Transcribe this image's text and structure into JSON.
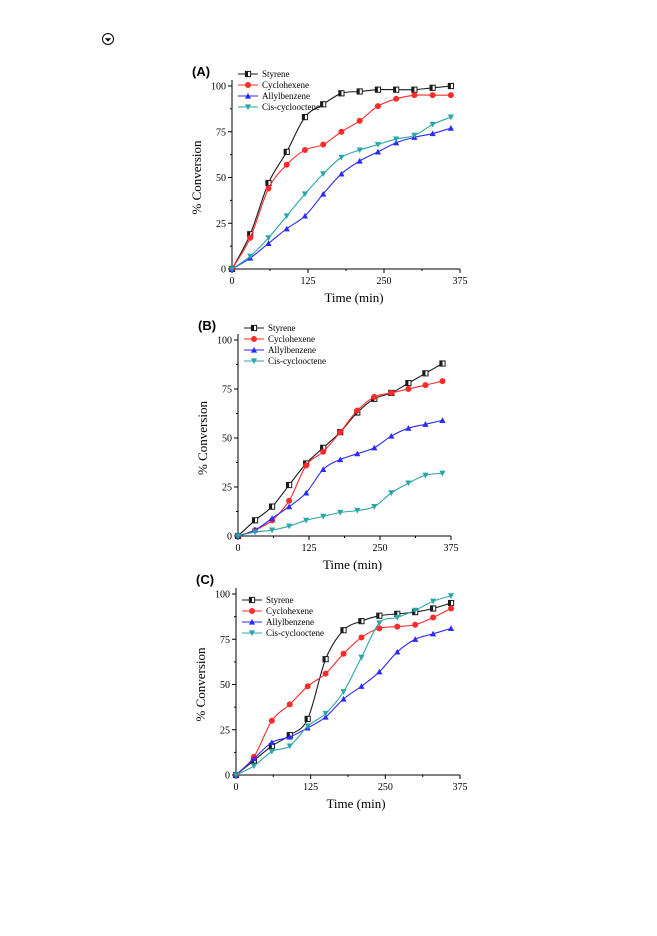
{
  "colors": {
    "styrene": "#1a1a1a",
    "cyclohexene": "#ff2a2a",
    "allylbenzene": "#2b2bff",
    "cis_cyclooctene": "#2aa6a8"
  },
  "page_icon": "circled-dot-icon",
  "chart_data": [
    {
      "type": "line",
      "panel_label": "(A)",
      "xlabel": "Time (min)",
      "ylabel": "% Conversion",
      "xlim": [
        0,
        375
      ],
      "ylim": [
        0,
        100
      ],
      "xticks": [
        "0",
        "125",
        "250",
        "375"
      ],
      "yticks": [
        "0",
        "25",
        "50",
        "75",
        "100"
      ],
      "legend_position": "top-left",
      "series": [
        {
          "name": "Styrene",
          "x": [
            0,
            30,
            60,
            90,
            120,
            150,
            180,
            210,
            240,
            270,
            300,
            330,
            360
          ],
          "y": [
            0,
            19,
            47,
            64,
            83,
            90,
            96,
            97,
            98,
            98,
            98,
            99,
            100
          ]
        },
        {
          "name": "Cyclohexene",
          "x": [
            0,
            30,
            60,
            90,
            120,
            150,
            180,
            210,
            240,
            270,
            300,
            330,
            360
          ],
          "y": [
            0,
            17,
            44,
            57,
            65,
            68,
            75,
            81,
            89,
            93,
            95,
            95,
            95
          ]
        },
        {
          "name": "Allylbenzene",
          "x": [
            0,
            30,
            60,
            90,
            120,
            150,
            180,
            210,
            240,
            270,
            300,
            330,
            360
          ],
          "y": [
            0,
            6,
            14,
            22,
            29,
            41,
            52,
            59,
            64,
            69,
            72,
            74,
            77
          ]
        },
        {
          "name": "Cis-cyclooctene",
          "x": [
            0,
            30,
            60,
            90,
            120,
            150,
            180,
            210,
            240,
            270,
            300,
            330,
            360
          ],
          "y": [
            0,
            7,
            17,
            29,
            41,
            52,
            61,
            65,
            68,
            71,
            73,
            79,
            83
          ]
        }
      ]
    },
    {
      "type": "line",
      "panel_label": "(B)",
      "xlabel": "Time (min)",
      "ylabel": "% Conversion",
      "xlim": [
        0,
        375
      ],
      "ylim": [
        0,
        100
      ],
      "xticks": [
        "0",
        "125",
        "250",
        "375"
      ],
      "yticks": [
        "0",
        "25",
        "50",
        "75",
        "100"
      ],
      "legend_position": "top-left",
      "series": [
        {
          "name": "Styrene",
          "x": [
            0,
            30,
            60,
            90,
            120,
            150,
            180,
            210,
            240,
            270,
            300,
            330,
            360
          ],
          "y": [
            0,
            8,
            15,
            26,
            37,
            45,
            53,
            63,
            70,
            73,
            78,
            83,
            88
          ]
        },
        {
          "name": "Cyclohexene",
          "x": [
            0,
            30,
            60,
            90,
            120,
            150,
            180,
            210,
            240,
            270,
            300,
            330,
            360
          ],
          "y": [
            0,
            3,
            8,
            18,
            36,
            43,
            53,
            64,
            71,
            73,
            75,
            77,
            79
          ]
        },
        {
          "name": "Allylbenzene",
          "x": [
            0,
            30,
            60,
            90,
            120,
            150,
            180,
            210,
            240,
            270,
            300,
            330,
            360
          ],
          "y": [
            0,
            3,
            9,
            15,
            22,
            34,
            39,
            42,
            45,
            51,
            55,
            57,
            59
          ]
        },
        {
          "name": "Cis-cyclooctene",
          "x": [
            0,
            30,
            60,
            90,
            120,
            150,
            180,
            210,
            240,
            270,
            300,
            330,
            360
          ],
          "y": [
            0,
            2,
            3,
            5,
            8,
            10,
            12,
            13,
            15,
            22,
            27,
            31,
            32
          ]
        }
      ]
    },
    {
      "type": "line",
      "panel_label": "(C)",
      "xlabel": "Time (min)",
      "ylabel": "% Conversion",
      "xlim": [
        0,
        375
      ],
      "ylim": [
        0,
        100
      ],
      "xticks": [
        "0",
        "125",
        "250",
        "375"
      ],
      "yticks": [
        "0",
        "25",
        "50",
        "75",
        "100"
      ],
      "legend_position": "top-left",
      "series": [
        {
          "name": "Styrene",
          "x": [
            0,
            30,
            60,
            90,
            120,
            150,
            180,
            210,
            240,
            270,
            300,
            330,
            360
          ],
          "y": [
            0,
            8,
            16,
            22,
            31,
            64,
            80,
            85,
            88,
            89,
            90,
            92,
            95
          ]
        },
        {
          "name": "Cyclohexene",
          "x": [
            0,
            30,
            60,
            90,
            120,
            150,
            180,
            210,
            240,
            270,
            300,
            330,
            360
          ],
          "y": [
            0,
            10,
            30,
            39,
            49,
            56,
            67,
            76,
            81,
            82,
            83,
            87,
            92
          ]
        },
        {
          "name": "Allylbenzene",
          "x": [
            0,
            30,
            60,
            90,
            120,
            150,
            180,
            210,
            240,
            270,
            300,
            330,
            360
          ],
          "y": [
            0,
            9,
            18,
            21,
            26,
            32,
            42,
            49,
            57,
            68,
            75,
            78,
            81
          ]
        },
        {
          "name": "Cis-cyclooctene",
          "x": [
            0,
            30,
            60,
            90,
            120,
            150,
            180,
            210,
            240,
            270,
            300,
            330,
            360
          ],
          "y": [
            0,
            5,
            13,
            16,
            27,
            34,
            46,
            65,
            84,
            87,
            91,
            96,
            99
          ]
        }
      ]
    }
  ]
}
